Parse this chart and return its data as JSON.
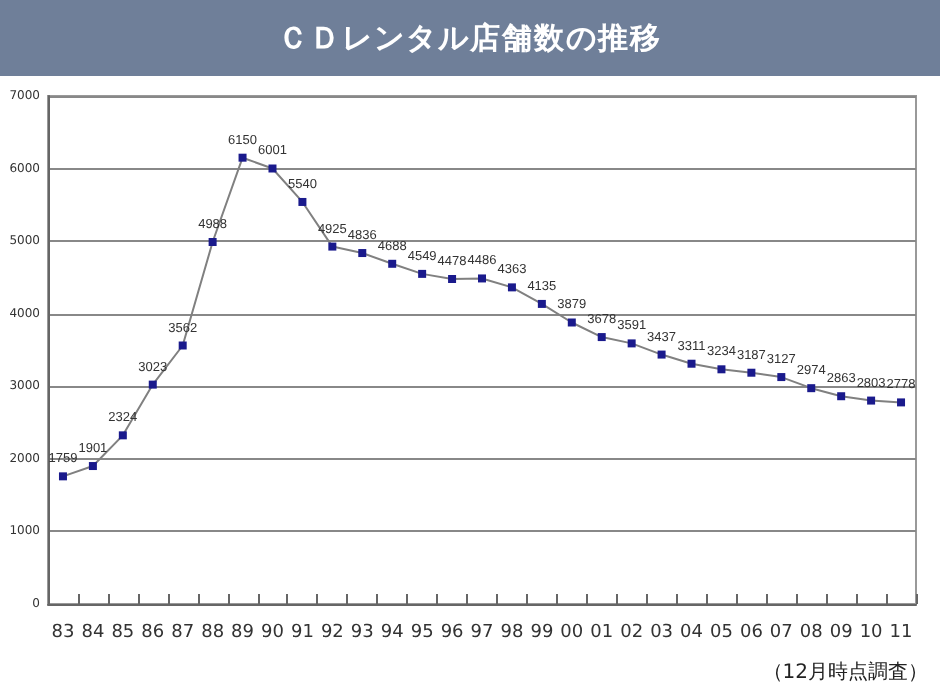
{
  "chart_data": {
    "type": "line",
    "title": "ＣＤレンタル店舗数の推移",
    "categories": [
      "83",
      "84",
      "85",
      "86",
      "87",
      "88",
      "89",
      "90",
      "91",
      "92",
      "93",
      "94",
      "95",
      "96",
      "97",
      "98",
      "99",
      "00",
      "01",
      "02",
      "03",
      "04",
      "05",
      "06",
      "07",
      "08",
      "09",
      "10",
      "11"
    ],
    "series": [
      {
        "color": "#808080",
        "values": [
          1759,
          1901,
          2324,
          3023,
          3562,
          4988,
          6150,
          6001,
          5540,
          4925,
          4836,
          4688,
          4549,
          4478,
          4486,
          4363,
          4135,
          3879,
          3678,
          3591,
          3437,
          3311,
          3234,
          3187,
          3127,
          2974,
          2863,
          2803,
          2778
        ]
      }
    ],
    "ylim": [
      0,
      7000
    ],
    "yticks": [
      0,
      1000,
      2000,
      3000,
      4000,
      5000,
      6000,
      7000
    ],
    "grid": "y",
    "marker": "square",
    "data_labels": true,
    "line_style": "solid",
    "annotations": [
      "（12月時点調査）"
    ]
  }
}
